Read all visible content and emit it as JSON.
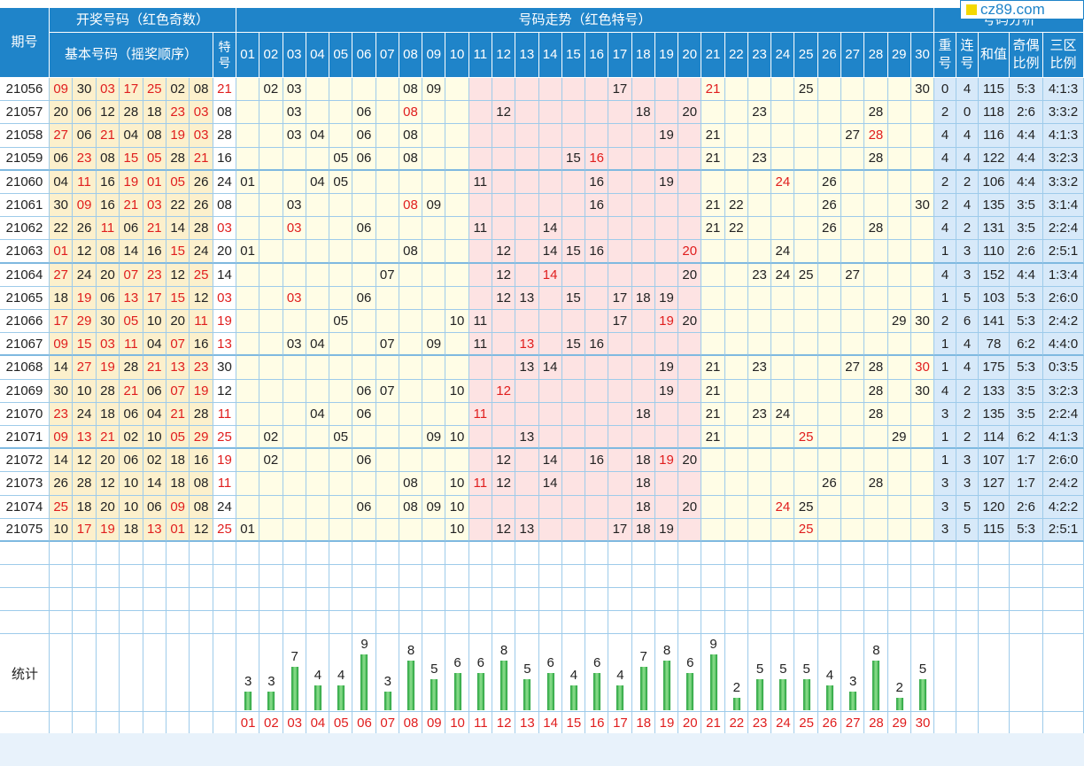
{
  "logo": "cz89.com",
  "headers": {
    "period": "期号",
    "draw": "开奖号码（红色奇数）",
    "basic": "基本号码（摇奖顺序）",
    "special": "特号",
    "trend": "号码走势（红色特号）",
    "analysis": "号码分析",
    "repeat": "重号",
    "consecutive": "连号",
    "sum": "和值",
    "oddeven": "奇偶比例",
    "zone": "三区比例"
  },
  "stats_label": "统计",
  "columns": [
    "01",
    "02",
    "03",
    "04",
    "05",
    "06",
    "07",
    "08",
    "09",
    "10",
    "11",
    "12",
    "13",
    "14",
    "15",
    "16",
    "17",
    "18",
    "19",
    "20",
    "21",
    "22",
    "23",
    "24",
    "25",
    "26",
    "27",
    "28",
    "29",
    "30"
  ],
  "rows": [
    {
      "period": "21056",
      "nums": [
        "09",
        "30",
        "03",
        "17",
        "25",
        "02",
        "08"
      ],
      "special": "21",
      "repeat": "0",
      "consec": "4",
      "sum": "115",
      "oe": "5:3",
      "zone": "4:1:3"
    },
    {
      "period": "21057",
      "nums": [
        "20",
        "06",
        "12",
        "28",
        "18",
        "23",
        "03"
      ],
      "special": "08",
      "repeat": "2",
      "consec": "0",
      "sum": "118",
      "oe": "2:6",
      "zone": "3:3:2"
    },
    {
      "period": "21058",
      "nums": [
        "27",
        "06",
        "21",
        "04",
        "08",
        "19",
        "03"
      ],
      "special": "28",
      "repeat": "4",
      "consec": "4",
      "sum": "116",
      "oe": "4:4",
      "zone": "4:1:3"
    },
    {
      "period": "21059",
      "nums": [
        "06",
        "23",
        "08",
        "15",
        "05",
        "28",
        "21"
      ],
      "special": "16",
      "repeat": "4",
      "consec": "4",
      "sum": "122",
      "oe": "4:4",
      "zone": "3:2:3"
    },
    {
      "period": "21060",
      "nums": [
        "04",
        "11",
        "16",
        "19",
        "01",
        "05",
        "26"
      ],
      "special": "24",
      "repeat": "2",
      "consec": "2",
      "sum": "106",
      "oe": "4:4",
      "zone": "3:3:2"
    },
    {
      "period": "21061",
      "nums": [
        "30",
        "09",
        "16",
        "21",
        "03",
        "22",
        "26"
      ],
      "special": "08",
      "repeat": "2",
      "consec": "4",
      "sum": "135",
      "oe": "3:5",
      "zone": "3:1:4"
    },
    {
      "period": "21062",
      "nums": [
        "22",
        "26",
        "11",
        "06",
        "21",
        "14",
        "28"
      ],
      "special": "03",
      "repeat": "4",
      "consec": "2",
      "sum": "131",
      "oe": "3:5",
      "zone": "2:2:4"
    },
    {
      "period": "21063",
      "nums": [
        "01",
        "12",
        "08",
        "14",
        "16",
        "15",
        "24"
      ],
      "special": "20",
      "repeat": "1",
      "consec": "3",
      "sum": "110",
      "oe": "2:6",
      "zone": "2:5:1"
    },
    {
      "period": "21064",
      "nums": [
        "27",
        "24",
        "20",
        "07",
        "23",
        "12",
        "25"
      ],
      "special": "14",
      "repeat": "4",
      "consec": "3",
      "sum": "152",
      "oe": "4:4",
      "zone": "1:3:4"
    },
    {
      "period": "21065",
      "nums": [
        "18",
        "19",
        "06",
        "13",
        "17",
        "15",
        "12"
      ],
      "special": "03",
      "repeat": "1",
      "consec": "5",
      "sum": "103",
      "oe": "5:3",
      "zone": "2:6:0"
    },
    {
      "period": "21066",
      "nums": [
        "17",
        "29",
        "30",
        "05",
        "10",
        "20",
        "11"
      ],
      "special": "19",
      "repeat": "2",
      "consec": "6",
      "sum": "141",
      "oe": "5:3",
      "zone": "2:4:2"
    },
    {
      "period": "21067",
      "nums": [
        "09",
        "15",
        "03",
        "11",
        "04",
        "07",
        "16"
      ],
      "special": "13",
      "repeat": "1",
      "consec": "4",
      "sum": "78",
      "oe": "6:2",
      "zone": "4:4:0"
    },
    {
      "period": "21068",
      "nums": [
        "14",
        "27",
        "19",
        "28",
        "21",
        "13",
        "23"
      ],
      "special": "30",
      "repeat": "1",
      "consec": "4",
      "sum": "175",
      "oe": "5:3",
      "zone": "0:3:5"
    },
    {
      "period": "21069",
      "nums": [
        "30",
        "10",
        "28",
        "21",
        "06",
        "07",
        "19"
      ],
      "special": "12",
      "repeat": "4",
      "consec": "2",
      "sum": "133",
      "oe": "3:5",
      "zone": "3:2:3"
    },
    {
      "period": "21070",
      "nums": [
        "23",
        "24",
        "18",
        "06",
        "04",
        "21",
        "28"
      ],
      "special": "11",
      "repeat": "3",
      "consec": "2",
      "sum": "135",
      "oe": "3:5",
      "zone": "2:2:4"
    },
    {
      "period": "21071",
      "nums": [
        "09",
        "13",
        "21",
        "02",
        "10",
        "05",
        "29"
      ],
      "special": "25",
      "repeat": "1",
      "consec": "2",
      "sum": "114",
      "oe": "6:2",
      "zone": "4:1:3"
    },
    {
      "period": "21072",
      "nums": [
        "14",
        "12",
        "20",
        "06",
        "02",
        "18",
        "16"
      ],
      "special": "19",
      "repeat": "1",
      "consec": "3",
      "sum": "107",
      "oe": "1:7",
      "zone": "2:6:0"
    },
    {
      "period": "21073",
      "nums": [
        "26",
        "28",
        "12",
        "10",
        "14",
        "18",
        "08"
      ],
      "special": "11",
      "repeat": "3",
      "consec": "3",
      "sum": "127",
      "oe": "1:7",
      "zone": "2:4:2"
    },
    {
      "period": "21074",
      "nums": [
        "25",
        "18",
        "20",
        "10",
        "06",
        "09",
        "08"
      ],
      "special": "24",
      "repeat": "3",
      "consec": "5",
      "sum": "120",
      "oe": "2:6",
      "zone": "4:2:2"
    },
    {
      "period": "21075",
      "nums": [
        "10",
        "17",
        "19",
        "18",
        "13",
        "01",
        "12"
      ],
      "special": "25",
      "repeat": "3",
      "consec": "5",
      "sum": "115",
      "oe": "5:3",
      "zone": "2:5:1"
    }
  ],
  "stats": [
    3,
    3,
    7,
    4,
    4,
    9,
    3,
    8,
    5,
    6,
    6,
    8,
    5,
    6,
    4,
    6,
    4,
    7,
    8,
    6,
    9,
    2,
    5,
    5,
    5,
    4,
    3,
    8,
    2,
    5
  ],
  "colors": {
    "header": "#1f84c9",
    "odd": "#e01e1e",
    "basic_bg": "#fcf0cc",
    "trend_zone1": "#fffde6",
    "trend_zone2": "#fde3e3",
    "analysis_bg": "#d7e9f9",
    "bar": "#22a03a"
  }
}
